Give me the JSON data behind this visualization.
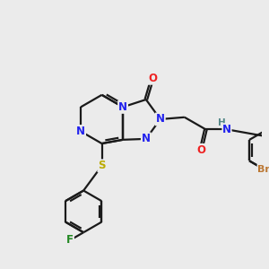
{
  "bg": "#ebebeb",
  "bond_color": "#1a1a1a",
  "lw": 1.6,
  "atom_colors": {
    "N": "#2222ee",
    "O": "#ee2222",
    "F": "#228822",
    "S": "#bbaa00",
    "Br": "#bb7733",
    "H": "#558888"
  },
  "fs": 8.5,
  "fs_br": 8.0
}
